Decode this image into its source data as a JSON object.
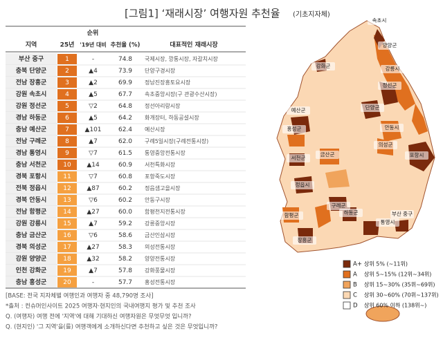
{
  "header": {
    "title": "[그림1] ‘재래시장’ 여행자원 추천율",
    "subtitle": "(기초지자체)"
  },
  "table": {
    "headers": {
      "region": "지역",
      "rank": "순위",
      "rank_2025": "25년",
      "rank_change": "'19년 대비",
      "rate": "추천율 (%)",
      "market": "대표적인 재래시장"
    },
    "rows": [
      [
        "부산 중구",
        "1",
        "-",
        "74.8",
        "국제시장, 깡통시장, 자갈치시장"
      ],
      [
        "충북 단양군",
        "2",
        "▲4",
        "73.9",
        "단양구경시장"
      ],
      [
        "전남 장흥군",
        "3",
        "▲2",
        "69.9",
        "정남진장흥토요시장"
      ],
      [
        "강원 속초시",
        "4",
        "▲5",
        "67.7",
        "속초중앙시장(구 관광수산시장)"
      ],
      [
        "강원 정선군",
        "5",
        "▽2",
        "64.8",
        "정선아리랑시장"
      ],
      [
        "경남 하동군",
        "6",
        "▲5",
        "64.2",
        "화개장터, 하동공설시장"
      ],
      [
        "충남 예산군",
        "7",
        "▲101",
        "62.4",
        "예산시장"
      ],
      [
        "전남 구례군",
        "8",
        "▲7",
        "62.0",
        "구례5일시장(구례전통시장)"
      ],
      [
        "경남 통영시",
        "9",
        "▽7",
        "61.5",
        "통영중앙전통시장"
      ],
      [
        "충남 서천군",
        "10",
        "▲14",
        "60.9",
        "서천특화시장"
      ],
      [
        "경북 포항시",
        "11",
        "▽7",
        "60.8",
        "포항죽도시장"
      ],
      [
        "전북 정읍시",
        "12",
        "▲87",
        "60.2",
        "정읍샘고을시장"
      ],
      [
        "경북 안동시",
        "13",
        "▽6",
        "60.2",
        "안동구시장"
      ],
      [
        "전남 함평군",
        "14",
        "▲27",
        "60.0",
        "함평천지전통시장"
      ],
      [
        "강원 강릉시",
        "15",
        "▲7",
        "59.2",
        "강릉중앙시장"
      ],
      [
        "충남 금산군",
        "16",
        "▽6",
        "58.6",
        "금산인삼시장"
      ],
      [
        "경북 의성군",
        "17",
        "▲27",
        "58.3",
        "의성전통시장"
      ],
      [
        "강원 양양군",
        "18",
        "▲32",
        "58.2",
        "양양전통시장"
      ],
      [
        "인천 강화군",
        "19",
        "▲7",
        "57.8",
        "강화풍물시장"
      ],
      [
        "충남 홍성군",
        "20",
        "-",
        "57.7",
        "홍성전통시장"
      ]
    ]
  },
  "notes": [
    "[BASE: 전국 지자체별 여행인과 여행자 중 48,790명 조사]",
    "*출처 : 컨슈머인사이트 2025 여행자·현지인의 국내여행지 평가 및 추천 조사",
    "Q. (여행자) 여행 전에 '지역'에 대해 기대하신 여행자원은 무엇무엇 입니까?",
    "Q. (현지인) '그 지역'을(를) 여행객에게 소개하신다면 추천하고 싶은 것은 무엇입니까?"
  ],
  "map": {
    "labels": [
      "속초시",
      "양양군",
      "강화군",
      "강릉시",
      "정선군",
      "단양군",
      "예산군",
      "홍성군",
      "안동시",
      "의성군",
      "서천군",
      "금산군",
      "포항시",
      "정읍시",
      "구례군",
      "하동군",
      "함평군",
      "통영시",
      "장흥군",
      "부산 중구"
    ]
  },
  "legend": [
    {
      "grade": "A+",
      "text": "상위 5% (~11위)",
      "color": "#7a2a0c"
    },
    {
      "grade": "A",
      "text": "상위 5~15% (12위~34위)",
      "color": "#e0701f"
    },
    {
      "grade": "B",
      "text": "상위 15~30% (35위~69위)",
      "color": "#f0a45c"
    },
    {
      "grade": "C",
      "text": "상위 30~60% (70위~137위)",
      "color": "#fbd8b4"
    },
    {
      "grade": "D",
      "text": "상위 60% 이하 (138위~)",
      "color": "#ffffff"
    }
  ]
}
